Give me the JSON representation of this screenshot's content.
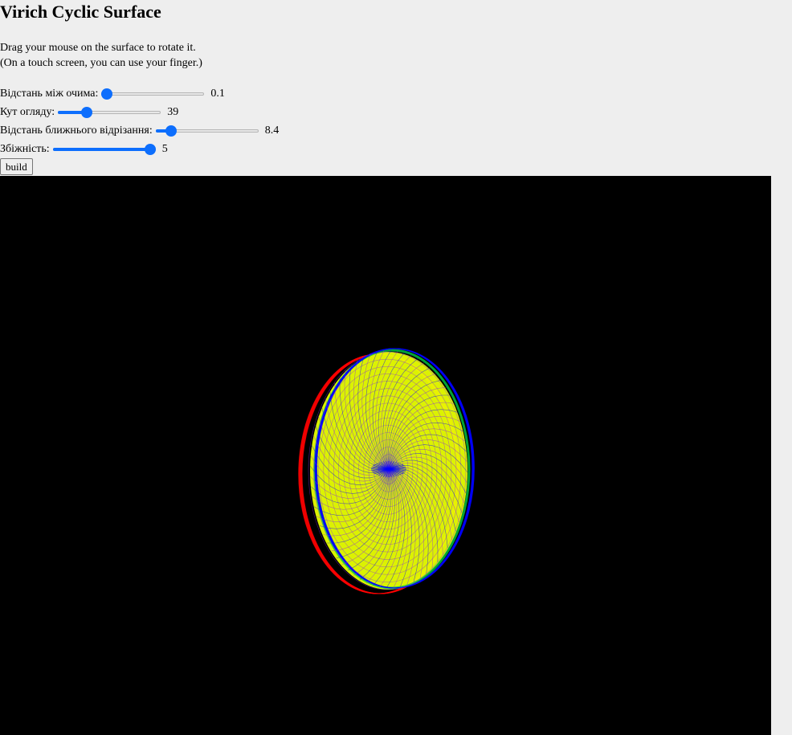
{
  "title": "Virich Cyclic Surface",
  "instructions": {
    "line1": "Drag your mouse on the surface to rotate it.",
    "line2": "(On a touch screen, you can use your finger.)"
  },
  "controls": [
    {
      "label": "Відстань між очима:",
      "value": "0.1",
      "level": 0.0
    },
    {
      "label": "Кут огляду:",
      "value": "39",
      "level": 0.25
    },
    {
      "label": "Відстань ближнього відрізання:",
      "value": "8.4",
      "level": 0.11
    },
    {
      "label": "Збіжність:",
      "value": "5",
      "level": 1.0
    }
  ],
  "build_label": "build",
  "surface": {
    "colors": {
      "left_eye": "#ff0000",
      "right_eye": "#0000ff",
      "face_fill": "#e8ff00",
      "mesh": "#8a2be2",
      "edge_green": "#00cc44",
      "background": "#000000"
    }
  }
}
